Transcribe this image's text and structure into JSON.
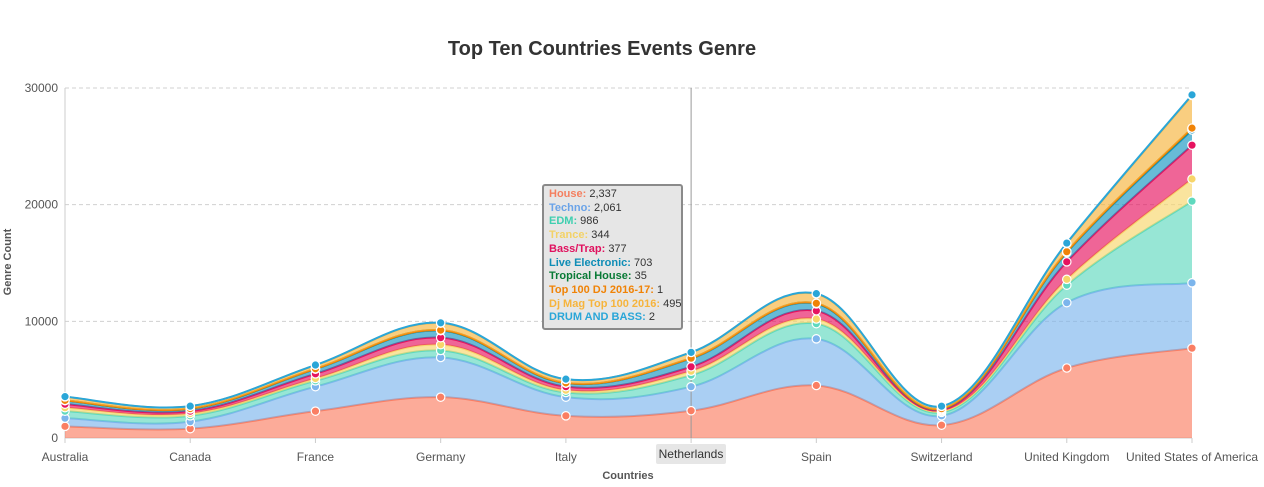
{
  "chart_data": {
    "type": "area",
    "title": "Top Ten Countries Events Genre",
    "xlabel": "Countries",
    "ylabel": "Genre Count",
    "ylim": [
      0,
      30000
    ],
    "yticks": [
      "0",
      "10000",
      "20000",
      "30000"
    ],
    "grid": "horizontal dashed",
    "categories": [
      "Australia",
      "Canada",
      "France",
      "Germany",
      "Italy",
      "Netherlands",
      "Spain",
      "Switzerland",
      "United Kingdom",
      "United States of America"
    ],
    "series": [
      {
        "name": "House",
        "color": "#fa7e63",
        "values": [
          1000,
          800,
          2300,
          3500,
          1900,
          2337,
          4500,
          1100,
          6000,
          7700
        ]
      },
      {
        "name": "Techno",
        "color": "#7cb5ec",
        "values": [
          700,
          600,
          2100,
          3400,
          1600,
          2061,
          4000,
          800,
          5600,
          5600
        ]
      },
      {
        "name": "EDM",
        "color": "#5fd9be",
        "values": [
          600,
          500,
          500,
          600,
          400,
          986,
          1300,
          300,
          1500,
          7000
        ]
      },
      {
        "name": "Trance",
        "color": "#f7d56a",
        "values": [
          300,
          200,
          200,
          500,
          200,
          344,
          400,
          100,
          500,
          1900
        ]
      },
      {
        "name": "Bass/Trap",
        "color": "#e6125f",
        "values": [
          300,
          200,
          400,
          600,
          300,
          377,
          700,
          100,
          1500,
          2900
        ]
      },
      {
        "name": "Live Electronic",
        "color": "#1597c1",
        "values": [
          300,
          200,
          400,
          600,
          300,
          703,
          600,
          100,
          800,
          1300
        ]
      },
      {
        "name": "Tropical House",
        "color": "#0b7a36",
        "values": [
          20,
          15,
          30,
          40,
          20,
          35,
          40,
          10,
          60,
          150
        ]
      },
      {
        "name": "Top 100 DJ 2016-17",
        "color": "#f08307",
        "values": [
          5,
          5,
          5,
          5,
          5,
          1,
          5,
          5,
          10,
          10
        ]
      },
      {
        "name": "Dj Mag Top 100 2016",
        "color": "#f6b43c",
        "values": [
          300,
          200,
          300,
          600,
          300,
          495,
          800,
          200,
          700,
          2800
        ]
      },
      {
        "name": "DRUM AND BASS",
        "color": "#2aa6d8",
        "values": [
          20,
          10,
          20,
          30,
          20,
          2,
          30,
          10,
          40,
          50
        ]
      }
    ],
    "tooltip": {
      "category": "Netherlands",
      "rows": [
        {
          "label": "House:",
          "value": "2,337",
          "color": "#f47f5f"
        },
        {
          "label": "Techno:",
          "value": "2,061",
          "color": "#6aa3e8"
        },
        {
          "label": "EDM:",
          "value": "986",
          "color": "#3fcfb0"
        },
        {
          "label": "Trance:",
          "value": "344",
          "color": "#f3d266"
        },
        {
          "label": "Bass/Trap:",
          "value": "377",
          "color": "#e0115e"
        },
        {
          "label": "Live Electronic:",
          "value": "703",
          "color": "#0f8db6"
        },
        {
          "label": "Tropical House:",
          "value": "35",
          "color": "#097a36"
        },
        {
          "label": "Top 100 DJ 2016-17:",
          "value": "1",
          "color": "#f08307"
        },
        {
          "label": "Dj Mag Top 100 2016:",
          "value": "495",
          "color": "#f6b43c"
        },
        {
          "label": "DRUM AND BASS:",
          "value": "2",
          "color": "#2aa6d8"
        }
      ]
    }
  }
}
